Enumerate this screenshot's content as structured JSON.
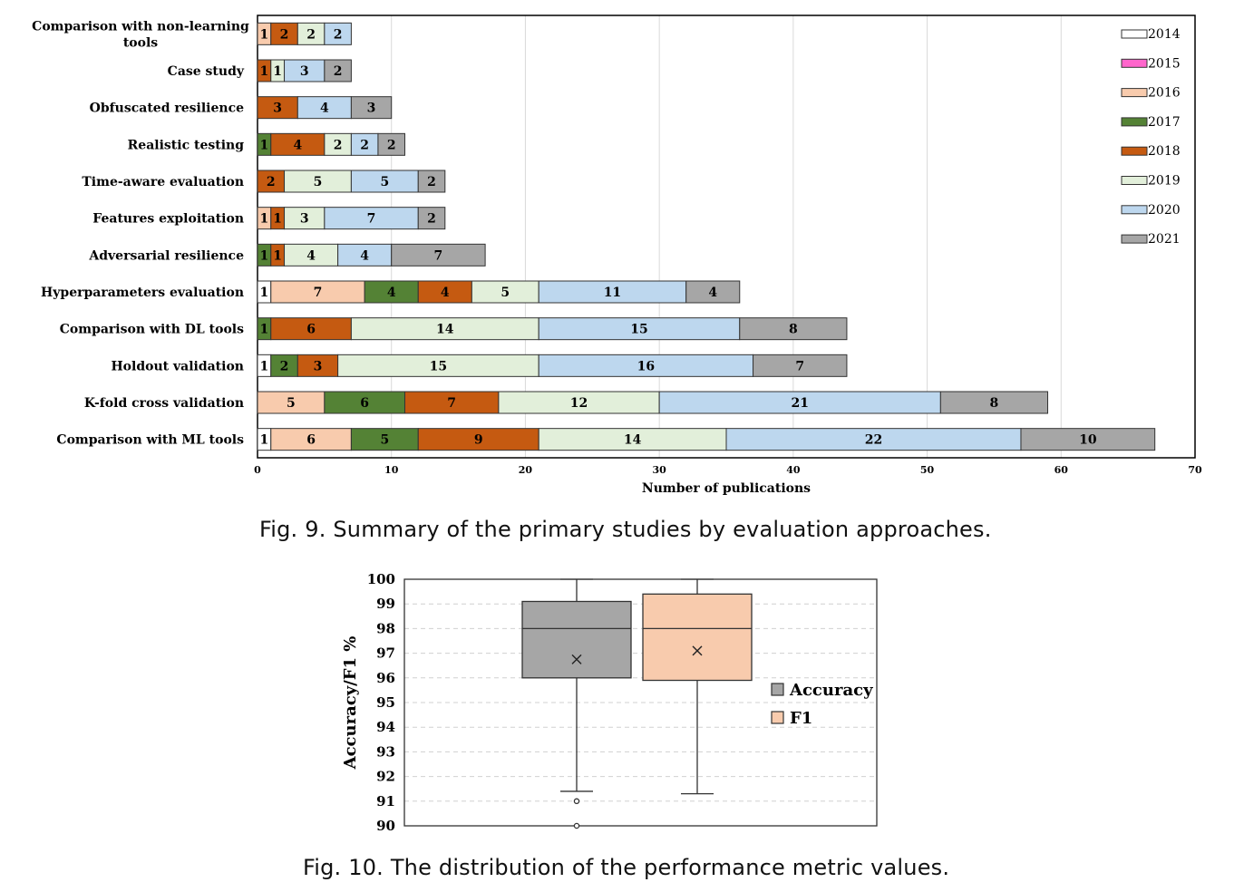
{
  "chart_data": [
    {
      "type": "bar",
      "orientation": "horizontal",
      "stacked": true,
      "categories": [
        "Comparison with non-learning tools",
        "Case study",
        "Obfuscated resilience",
        "Realistic testing",
        "Time-aware evaluation",
        "Features exploitation",
        "Adversarial resilience",
        "Hyperparameters evaluation",
        "Comparison with DL tools",
        "Holdout validation",
        "K-fold cross validation",
        "Comparison with ML tools"
      ],
      "series": [
        {
          "name": "2014",
          "color": "#ffffff",
          "values": [
            0,
            0,
            0,
            0,
            0,
            0,
            0,
            1,
            0,
            1,
            0,
            1
          ]
        },
        {
          "name": "2015",
          "color": "#ff66cc",
          "values": [
            0,
            0,
            0,
            0,
            0,
            0,
            0,
            0,
            0,
            0,
            0,
            0
          ]
        },
        {
          "name": "2016",
          "color": "#f8cbad",
          "values": [
            1,
            0,
            0,
            0,
            0,
            1,
            0,
            7,
            0,
            0,
            5,
            6
          ]
        },
        {
          "name": "2017",
          "color": "#548235",
          "values": [
            0,
            0,
            0,
            1,
            0,
            0,
            1,
            4,
            1,
            2,
            6,
            5
          ]
        },
        {
          "name": "2018",
          "color": "#c55a11",
          "values": [
            2,
            1,
            3,
            4,
            2,
            1,
            1,
            4,
            6,
            3,
            7,
            9
          ]
        },
        {
          "name": "2019",
          "color": "#e2efda",
          "values": [
            2,
            1,
            0,
            2,
            5,
            3,
            4,
            5,
            14,
            15,
            12,
            14
          ]
        },
        {
          "name": "2020",
          "color": "#bdd7ee",
          "values": [
            2,
            3,
            4,
            2,
            5,
            7,
            4,
            11,
            15,
            16,
            21,
            22
          ]
        },
        {
          "name": "2021",
          "color": "#a6a6a6",
          "values": [
            0,
            2,
            3,
            2,
            2,
            2,
            7,
            4,
            8,
            7,
            8,
            10
          ]
        }
      ],
      "xlabel": "Number of publications",
      "xlim": [
        0,
        70
      ],
      "xticks": [
        "0",
        "10",
        "20",
        "30",
        "40",
        "50",
        "60",
        "70"
      ],
      "grid": true,
      "legend": "right"
    },
    {
      "type": "box",
      "ylabel": "Accuracy/F1 %",
      "ylim": [
        90,
        100
      ],
      "yticks": [
        "90",
        "91",
        "92",
        "93",
        "94",
        "95",
        "96",
        "97",
        "98",
        "99",
        "100"
      ],
      "series": [
        {
          "name": "Accuracy",
          "color": "#a6a6a6",
          "min": 91.4,
          "q1": 96,
          "median": 98,
          "q3": 99.1,
          "max": 100,
          "mean": 96.75,
          "outliers": [
            91,
            90
          ]
        },
        {
          "name": "F1",
          "color": "#f8cbad",
          "min": 91.3,
          "q1": 95.9,
          "median": 98,
          "q3": 99.4,
          "max": 100,
          "mean": 97.1,
          "outliers": []
        }
      ],
      "grid": true,
      "legend": "right"
    }
  ],
  "captions": {
    "fig9": "Fig. 9.  Summary of the primary studies by evaluation approaches.",
    "fig10": "Fig. 10.  The distribution of the performance metric values."
  }
}
